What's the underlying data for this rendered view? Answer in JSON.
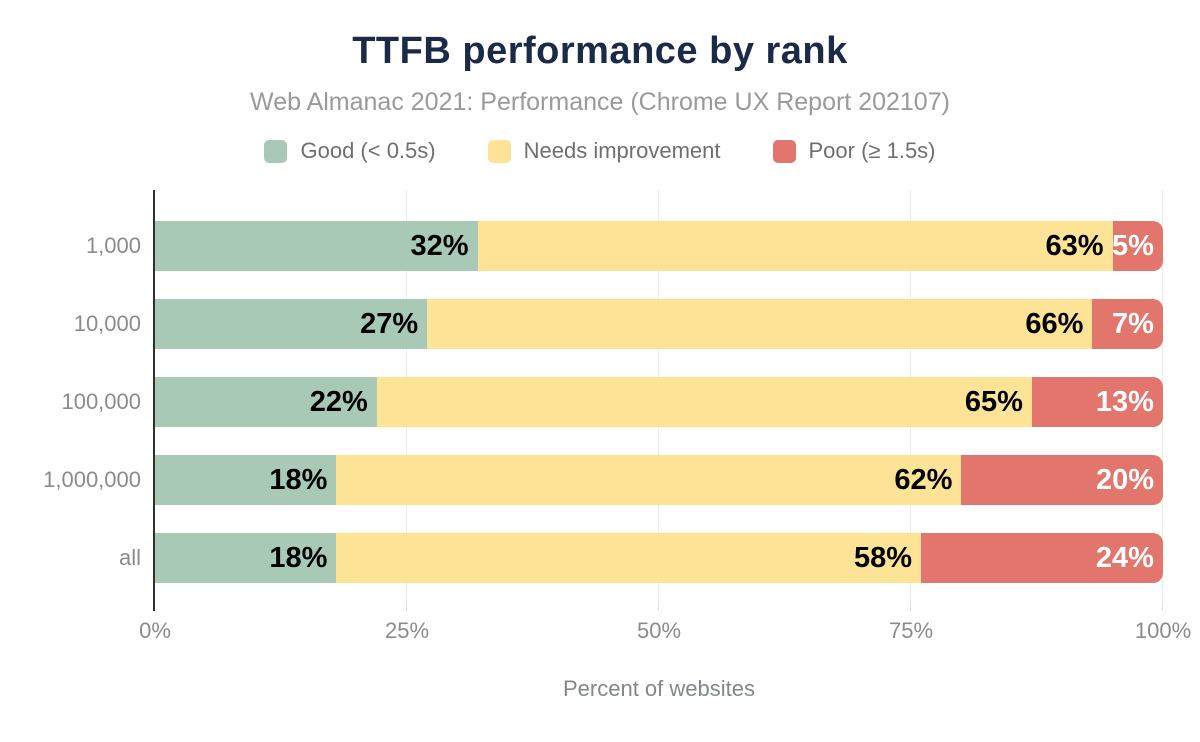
{
  "title": "TTFB performance by rank",
  "subtitle": "Web Almanac 2021: Performance (Chrome UX Report 202107)",
  "colors": {
    "good": "#a8c9b6",
    "needs_improvement": "#fde396",
    "poor": "#e2756c",
    "title_text": "#1c2a4a",
    "muted_text": "#8b8b8b",
    "axis_line": "#2f2f2f",
    "gridline": "#ececec"
  },
  "legend": [
    {
      "label": "Good (< 0.5s)",
      "color": "#a8c9b6"
    },
    {
      "label": "Needs improvement",
      "color": "#fde396"
    },
    {
      "label": "Poor (≥ 1.5s)",
      "color": "#e2756c"
    }
  ],
  "chart_data": {
    "type": "bar",
    "stacked": true,
    "orientation": "horizontal",
    "title": "TTFB performance by rank",
    "subtitle": "Web Almanac 2021: Performance (Chrome UX Report 202107)",
    "categories": [
      "1,000",
      "10,000",
      "100,000",
      "1,000,000",
      "all"
    ],
    "series": [
      {
        "name": "Good (< 0.5s)",
        "color": "#a8c9b6",
        "label_color": "#000000",
        "values": [
          32,
          27,
          22,
          18,
          18
        ]
      },
      {
        "name": "Needs improvement",
        "color": "#fde396",
        "label_color": "#000000",
        "values": [
          63,
          66,
          65,
          62,
          58
        ]
      },
      {
        "name": "Poor (≥ 1.5s)",
        "color": "#e2756c",
        "label_color": "#ffffff",
        "values": [
          5,
          7,
          13,
          20,
          24
        ]
      }
    ],
    "value_suffix": "%",
    "xlabel": "Percent of websites",
    "ylabel": "",
    "xlim": [
      0,
      100
    ],
    "x_ticks": [
      "0%",
      "25%",
      "50%",
      "75%",
      "100%"
    ],
    "x_tick_values": [
      0,
      25,
      50,
      75,
      100
    ],
    "grid": "vertical",
    "legend_position": "top"
  }
}
